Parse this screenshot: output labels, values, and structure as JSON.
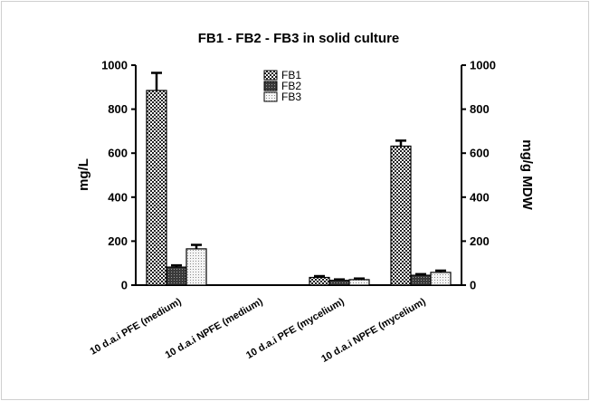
{
  "chart_data": {
    "type": "bar",
    "title": "FB1 - FB2 - FB3 in solid culture",
    "ylabel": "mg/L",
    "ylabel_right": "mg/g MDW",
    "ylim": [
      0,
      1000
    ],
    "yticks": [
      "0",
      "200",
      "400",
      "600",
      "800",
      "1000"
    ],
    "categories": [
      "10 d.a.i  PFE  (medium)",
      "10 d.a.i NPFE (medium)",
      "10 d.a.i  PFE (mycelium)",
      "10 d.a.i  NPFE (mycelium)"
    ],
    "series": [
      {
        "name": "FB1",
        "values": [
          885,
          0,
          35,
          632
        ],
        "errors": [
          80,
          0,
          6,
          25
        ],
        "pattern": "checker"
      },
      {
        "name": "FB2",
        "values": [
          82,
          0,
          22,
          45
        ],
        "errors": [
          8,
          0,
          4,
          5
        ],
        "pattern": "dark"
      },
      {
        "name": "FB3",
        "values": [
          165,
          0,
          25,
          58
        ],
        "errors": [
          18,
          0,
          5,
          8
        ],
        "pattern": "dots"
      }
    ],
    "legend_position": "top-center",
    "grid": false
  }
}
